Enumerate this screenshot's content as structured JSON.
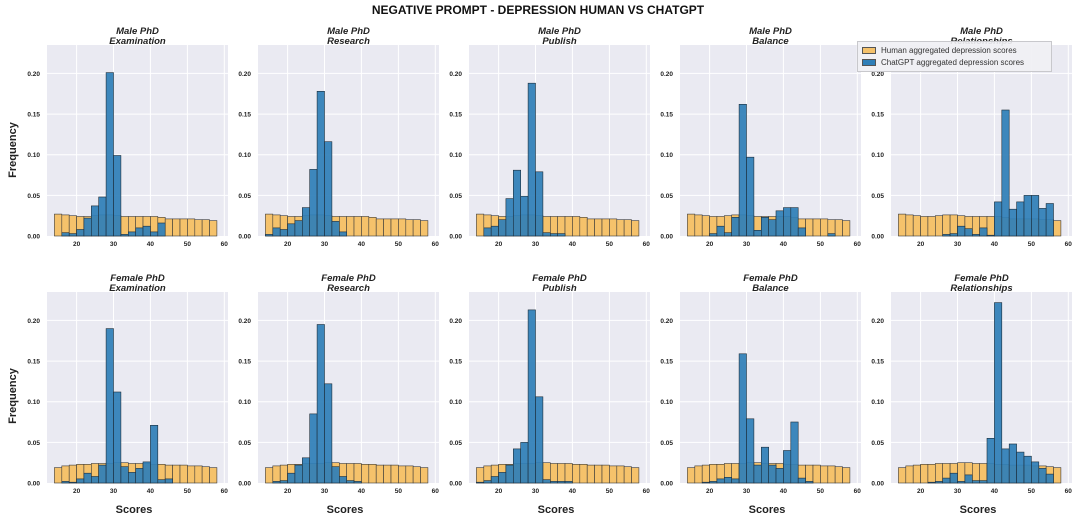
{
  "chart_data": {
    "type": "histogram-grid",
    "title": "NEGATIVE PROMPT - DEPRESSION HUMAN VS CHATGPT",
    "xlabel": "Scores",
    "ylabel": "Frequency",
    "x_ticks": [
      20,
      30,
      40,
      50,
      60
    ],
    "y_ticks": [
      0.0,
      0.05,
      0.1,
      0.15,
      0.2
    ],
    "y_tick_labels": [
      "0.00",
      "0.05",
      "0.10",
      "0.15",
      "0.20"
    ],
    "xlim": [
      12,
      61
    ],
    "ylim": [
      0,
      0.235
    ],
    "grid": true,
    "legend": {
      "position": "top-right",
      "entries": [
        {
          "label": "Human aggregated depression scores",
          "color": "#f5c26b"
        },
        {
          "label": "ChatGPT aggregated depression scores",
          "color": "#2f7fb8"
        }
      ]
    },
    "bin_edges": [
      14,
      16,
      18,
      20,
      22,
      24,
      26,
      28,
      30,
      32,
      34,
      36,
      38,
      40,
      42,
      44,
      46,
      48,
      50,
      52,
      54,
      56,
      58
    ],
    "panels": [
      {
        "title": [
          "Male PhD",
          "Examination"
        ],
        "human": [
          0.027,
          0.026,
          0.025,
          0.024,
          0.024,
          0.025,
          0.026,
          0.026,
          0.025,
          0.024,
          0.024,
          0.024,
          0.024,
          0.024,
          0.023,
          0.021,
          0.021,
          0.021,
          0.021,
          0.02,
          0.02,
          0.019
        ],
        "chatgpt": [
          0,
          0.004,
          0.003,
          0.008,
          0.022,
          0.037,
          0.048,
          0.201,
          0.099,
          0.002,
          0.005,
          0.01,
          0.012,
          0.005,
          0.016,
          0,
          0,
          0,
          0,
          0,
          0,
          0
        ]
      },
      {
        "title": [
          "Male PhD",
          "Research"
        ],
        "human": [
          0.027,
          0.026,
          0.025,
          0.024,
          0.024,
          0.025,
          0.026,
          0.026,
          0.025,
          0.024,
          0.024,
          0.024,
          0.024,
          0.024,
          0.023,
          0.021,
          0.021,
          0.021,
          0.021,
          0.02,
          0.02,
          0.019
        ],
        "chatgpt": [
          0.002,
          0.01,
          0.008,
          0.015,
          0.019,
          0.035,
          0.082,
          0.178,
          0.116,
          0.018,
          0.005,
          0,
          0,
          0,
          0,
          0,
          0,
          0,
          0,
          0,
          0,
          0
        ]
      },
      {
        "title": [
          "Male PhD",
          "Publish"
        ],
        "human": [
          0.027,
          0.026,
          0.025,
          0.024,
          0.024,
          0.025,
          0.026,
          0.026,
          0.025,
          0.024,
          0.024,
          0.024,
          0.024,
          0.024,
          0.023,
          0.021,
          0.021,
          0.021,
          0.021,
          0.02,
          0.02,
          0.019
        ],
        "chatgpt": [
          0,
          0.01,
          0.012,
          0.02,
          0.046,
          0.081,
          0.049,
          0.188,
          0.079,
          0.004,
          0.003,
          0.003,
          0,
          0,
          0,
          0,
          0,
          0,
          0,
          0,
          0,
          0
        ]
      },
      {
        "title": [
          "Male PhD",
          "Balance"
        ],
        "human": [
          0.027,
          0.026,
          0.025,
          0.024,
          0.024,
          0.025,
          0.026,
          0.026,
          0.025,
          0.024,
          0.024,
          0.024,
          0.024,
          0.024,
          0.023,
          0.021,
          0.021,
          0.021,
          0.021,
          0.02,
          0.02,
          0.019
        ],
        "chatgpt": [
          0,
          0,
          0,
          0.003,
          0.012,
          0.004,
          0.023,
          0.162,
          0.097,
          0.007,
          0.023,
          0.02,
          0.031,
          0.035,
          0.035,
          0.01,
          0,
          0,
          0,
          0.003,
          0,
          0
        ]
      },
      {
        "title": [
          "Male PhD",
          "Relationships"
        ],
        "human": [
          0.027,
          0.026,
          0.025,
          0.024,
          0.024,
          0.025,
          0.026,
          0.026,
          0.025,
          0.024,
          0.024,
          0.024,
          0.024,
          0.024,
          0.023,
          0.021,
          0.021,
          0.021,
          0.021,
          0.02,
          0.02,
          0.019
        ],
        "chatgpt": [
          0,
          0,
          0,
          0,
          0,
          0,
          0.002,
          0.003,
          0.012,
          0.009,
          0.002,
          0.01,
          0.001,
          0.042,
          0.155,
          0.033,
          0.042,
          0.05,
          0.05,
          0.034,
          0.04,
          0
        ]
      },
      {
        "title": [
          "Female PhD",
          "Examination"
        ],
        "human": [
          0.019,
          0.021,
          0.022,
          0.023,
          0.023,
          0.024,
          0.024,
          0.024,
          0.025,
          0.025,
          0.024,
          0.024,
          0.024,
          0.023,
          0.023,
          0.022,
          0.022,
          0.022,
          0.021,
          0.021,
          0.02,
          0.019
        ],
        "chatgpt": [
          0,
          0.002,
          0.001,
          0.005,
          0.012,
          0.008,
          0.022,
          0.19,
          0.112,
          0.02,
          0.013,
          0.018,
          0.026,
          0.071,
          0.004,
          0.005,
          0,
          0,
          0,
          0,
          0,
          0
        ]
      },
      {
        "title": [
          "Female PhD",
          "Research"
        ],
        "human": [
          0.019,
          0.021,
          0.022,
          0.023,
          0.023,
          0.024,
          0.024,
          0.024,
          0.025,
          0.025,
          0.024,
          0.024,
          0.024,
          0.023,
          0.023,
          0.022,
          0.022,
          0.022,
          0.021,
          0.021,
          0.02,
          0.019
        ],
        "chatgpt": [
          0,
          0.002,
          0.003,
          0.012,
          0.022,
          0.031,
          0.085,
          0.195,
          0.122,
          0.02,
          0.008,
          0.003,
          0.002,
          0,
          0,
          0,
          0,
          0,
          0,
          0,
          0,
          0
        ]
      },
      {
        "title": [
          "Female PhD",
          "Publish"
        ],
        "human": [
          0.019,
          0.021,
          0.022,
          0.023,
          0.023,
          0.024,
          0.024,
          0.024,
          0.025,
          0.025,
          0.024,
          0.024,
          0.024,
          0.023,
          0.023,
          0.022,
          0.022,
          0.022,
          0.021,
          0.021,
          0.02,
          0.019
        ],
        "chatgpt": [
          0.001,
          0.003,
          0.008,
          0.013,
          0.022,
          0.042,
          0.05,
          0.213,
          0.106,
          0.004,
          0.002,
          0.002,
          0.002,
          0,
          0,
          0,
          0,
          0,
          0,
          0,
          0,
          0
        ]
      },
      {
        "title": [
          "Female PhD",
          "Balance"
        ],
        "human": [
          0.019,
          0.021,
          0.022,
          0.023,
          0.023,
          0.024,
          0.024,
          0.024,
          0.025,
          0.025,
          0.024,
          0.024,
          0.024,
          0.023,
          0.023,
          0.022,
          0.022,
          0.022,
          0.021,
          0.021,
          0.02,
          0.019
        ],
        "chatgpt": [
          0,
          0,
          0.001,
          0.002,
          0.005,
          0.007,
          0.005,
          0.159,
          0.079,
          0.022,
          0.044,
          0.022,
          0.018,
          0.04,
          0.075,
          0.006,
          0.002,
          0,
          0,
          0,
          0,
          0
        ]
      },
      {
        "title": [
          "Female PhD",
          "Relationships"
        ],
        "human": [
          0.019,
          0.021,
          0.022,
          0.023,
          0.023,
          0.024,
          0.024,
          0.024,
          0.025,
          0.025,
          0.024,
          0.024,
          0.024,
          0.023,
          0.023,
          0.022,
          0.022,
          0.022,
          0.021,
          0.021,
          0.02,
          0.019
        ],
        "chatgpt": [
          0,
          0,
          0,
          0,
          0.001,
          0.002,
          0.006,
          0.012,
          0.002,
          0.01,
          0.003,
          0.003,
          0.055,
          0.222,
          0.042,
          0.048,
          0.038,
          0.033,
          0.026,
          0.018,
          0.011,
          0
        ]
      }
    ]
  }
}
